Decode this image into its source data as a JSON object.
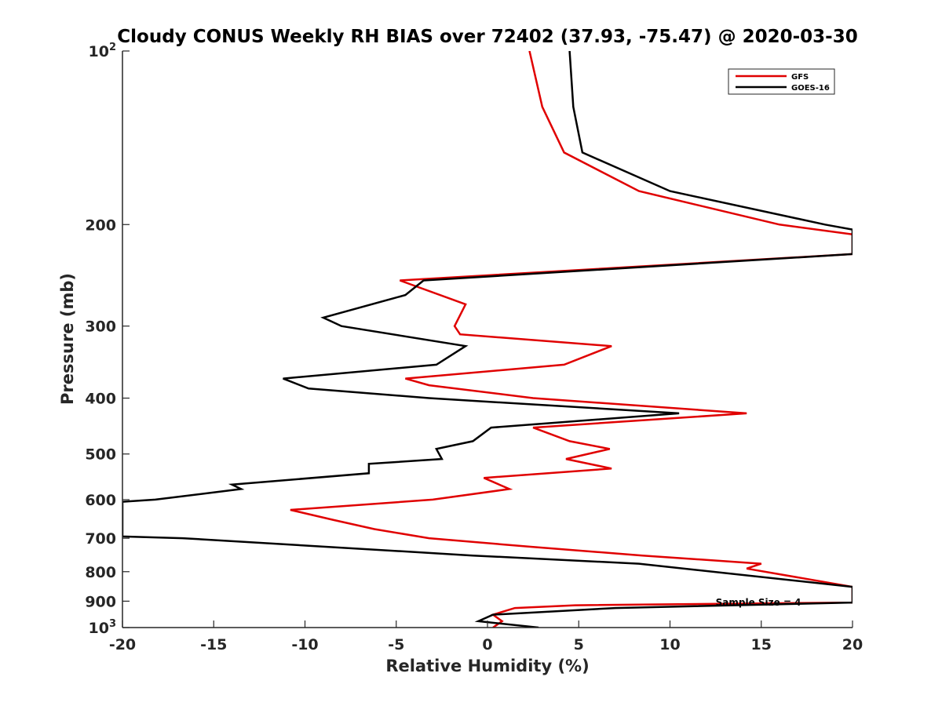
{
  "chart_data": {
    "type": "line",
    "title": "Cloudy CONUS Weekly RH BIAS over 72402 (37.93, -75.47) @ 2020-03-30",
    "xlabel": "Relative Humidity (%)",
    "ylabel": "Pressure (mb)",
    "xlim": [
      -20,
      20
    ],
    "ylim": [
      100,
      1000
    ],
    "y_scale": "log",
    "y_reversed": true,
    "grid": false,
    "legend_position": "top-right",
    "x_ticks": [
      "-20",
      "-15",
      "-10",
      "-5",
      "0",
      "5",
      "10",
      "15",
      "20"
    ],
    "x_tick_values": [
      -20,
      -15,
      -10,
      -5,
      0,
      5,
      10,
      15,
      20
    ],
    "y_ticks": [
      {
        "value": 100,
        "base": "10",
        "exp": "2"
      },
      {
        "value": 200,
        "label": "200"
      },
      {
        "value": 300,
        "label": "300"
      },
      {
        "value": 400,
        "label": "400"
      },
      {
        "value": 500,
        "label": "500"
      },
      {
        "value": 600,
        "label": "600"
      },
      {
        "value": 700,
        "label": "700"
      },
      {
        "value": 800,
        "label": "800"
      },
      {
        "value": 900,
        "label": "900"
      },
      {
        "value": 1000,
        "base": "10",
        "exp": "3"
      }
    ],
    "annotation": "Sample Size = 4",
    "annotation_at": {
      "x": 12.5,
      "p": 905
    },
    "series": [
      {
        "name": "GFS",
        "color": "#e00000",
        "points": [
          [
            2.3,
            100
          ],
          [
            3.0,
            125
          ],
          [
            4.2,
            150
          ],
          [
            8.3,
            175
          ],
          [
            16.0,
            200
          ],
          [
            20.0,
            208
          ],
          [
            20.0,
            225
          ],
          [
            -4.8,
            250
          ],
          [
            -1.2,
            275
          ],
          [
            -1.8,
            300
          ],
          [
            -1.5,
            310
          ],
          [
            6.8,
            325
          ],
          [
            4.2,
            350
          ],
          [
            -4.5,
            370
          ],
          [
            -3.2,
            380
          ],
          [
            2.5,
            400
          ],
          [
            14.2,
            425
          ],
          [
            2.5,
            450
          ],
          [
            4.5,
            475
          ],
          [
            6.7,
            490
          ],
          [
            4.3,
            510
          ],
          [
            6.8,
            530
          ],
          [
            -0.2,
            550
          ],
          [
            1.2,
            575
          ],
          [
            -3.0,
            600
          ],
          [
            -10.8,
            625
          ],
          [
            -8.5,
            650
          ],
          [
            -6.2,
            675
          ],
          [
            -3.2,
            700
          ],
          [
            2.5,
            725
          ],
          [
            8.5,
            750
          ],
          [
            15.0,
            775
          ],
          [
            14.2,
            790
          ],
          [
            20.0,
            850
          ],
          [
            20.0,
            905
          ],
          [
            4.8,
            915
          ],
          [
            1.5,
            925
          ],
          [
            0.3,
            950
          ],
          [
            0.8,
            975
          ],
          [
            0.3,
            1000
          ]
        ]
      },
      {
        "name": "GOES-16",
        "color": "#000000",
        "points": [
          [
            4.5,
            100
          ],
          [
            4.7,
            125
          ],
          [
            5.2,
            150
          ],
          [
            10.0,
            175
          ],
          [
            18.5,
            200
          ],
          [
            20.0,
            204
          ],
          [
            20.0,
            225
          ],
          [
            -3.5,
            250
          ],
          [
            -4.5,
            265
          ],
          [
            -9.0,
            290
          ],
          [
            -8.0,
            300
          ],
          [
            -1.2,
            325
          ],
          [
            -2.8,
            350
          ],
          [
            -11.2,
            370
          ],
          [
            -9.8,
            385
          ],
          [
            -3.2,
            400
          ],
          [
            10.5,
            425
          ],
          [
            0.2,
            450
          ],
          [
            -0.8,
            475
          ],
          [
            -2.8,
            490
          ],
          [
            -2.5,
            510
          ],
          [
            -6.5,
            520
          ],
          [
            -6.5,
            540
          ],
          [
            -14.0,
            565
          ],
          [
            -13.5,
            575
          ],
          [
            -18.2,
            600
          ],
          [
            -20.0,
            605
          ],
          [
            -20.0,
            695
          ],
          [
            -16.7,
            700
          ],
          [
            -0.8,
            750
          ],
          [
            8.3,
            775
          ],
          [
            20.0,
            850
          ],
          [
            20.0,
            905
          ],
          [
            7.0,
            925
          ],
          [
            0.3,
            950
          ],
          [
            -0.5,
            975
          ],
          [
            2.8,
            1000
          ]
        ]
      }
    ]
  }
}
